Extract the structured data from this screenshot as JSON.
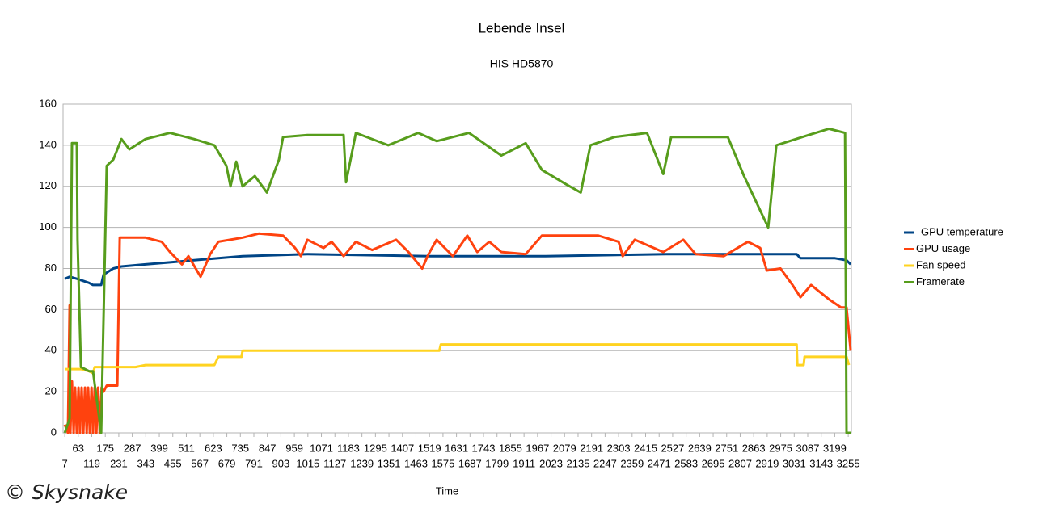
{
  "chart_data": {
    "type": "line",
    "title": "Lebende Insel",
    "subtitle": "HIS HD5870",
    "x_label": "Time",
    "watermark": "© Skysnake",
    "xlim": [
      0,
      3268
    ],
    "xticks": [
      7,
      63,
      119,
      175,
      231,
      287,
      343,
      399,
      455,
      511,
      567,
      623,
      679,
      735,
      791,
      847,
      903,
      959,
      1015,
      1071,
      1127,
      1183,
      1239,
      1295,
      1351,
      1407,
      1463,
      1519,
      1575,
      1631,
      1687,
      1743,
      1799,
      1855,
      1911,
      1967,
      2023,
      2079,
      2135,
      2191,
      2247,
      2303,
      2359,
      2415,
      2471,
      2527,
      2583,
      2639,
      2695,
      2751,
      2807,
      2863,
      2919,
      2975,
      3031,
      3087,
      3143,
      3199,
      3255
    ],
    "ylim": [
      0,
      160
    ],
    "yticks": [
      0,
      20,
      40,
      60,
      80,
      100,
      120,
      140,
      160
    ],
    "grid": true,
    "legend": "right",
    "series": [
      {
        "name": "GPU temperature",
        "color": "#004586",
        "x": [
          7,
          27,
          57,
          108,
          124,
          158,
          168,
          208,
          242,
          342,
          443,
          543,
          644,
          744,
          1013,
          1516,
          2000,
          2500,
          3041,
          3057,
          3200,
          3248,
          3265
        ],
        "values": [
          75,
          76,
          75,
          73,
          72,
          72,
          77,
          80,
          81,
          82,
          83,
          84,
          85,
          86,
          87,
          86,
          86,
          87,
          87,
          85,
          85,
          84,
          82
        ]
      },
      {
        "name": "GPU usage",
        "color": "#ff420e",
        "x": [
          7,
          20,
          27,
          30,
          37,
          44,
          50,
          57,
          64,
          70,
          77,
          84,
          91,
          98,
          104,
          111,
          118,
          124,
          131,
          138,
          145,
          152,
          160,
          168,
          181,
          225,
          235,
          242,
          342,
          409,
          443,
          493,
          520,
          570,
          610,
          644,
          744,
          811,
          912,
          962,
          986,
          1013,
          1080,
          1113,
          1163,
          1214,
          1281,
          1381,
          1432,
          1489,
          1515,
          1549,
          1616,
          1676,
          1717,
          1767,
          1817,
          1918,
          1985,
          2219,
          2303,
          2320,
          2370,
          2488,
          2571,
          2622,
          2739,
          2839,
          2890,
          2917,
          2974,
          3024,
          3057,
          3101,
          3175,
          3225,
          3248,
          3265
        ],
        "values": [
          4,
          0,
          62,
          0,
          25,
          0,
          22,
          0,
          22,
          0,
          22,
          0,
          22,
          0,
          22,
          0,
          22,
          0,
          22,
          0,
          22,
          0,
          22,
          20,
          23,
          23,
          95,
          95,
          95,
          93,
          88,
          82,
          86,
          76,
          87,
          93,
          95,
          97,
          96,
          90,
          86,
          94,
          90,
          93,
          86,
          93,
          89,
          94,
          88,
          80,
          87,
          94,
          86,
          96,
          88,
          93,
          88,
          87,
          96,
          96,
          93,
          86,
          94,
          88,
          94,
          87,
          86,
          93,
          90,
          79,
          80,
          72,
          66,
          72,
          65,
          61,
          61,
          40
        ]
      },
      {
        "name": "Fan speed",
        "color": "#ffd320",
        "x": [
          7,
          74,
          108,
          124,
          131,
          300,
          342,
          627,
          644,
          740,
          744,
          1560,
          1566,
          3041,
          3044,
          3070,
          3074,
          3248,
          3258
        ],
        "values": [
          31,
          31,
          30,
          29,
          32,
          32,
          33,
          33,
          37,
          37,
          40,
          40,
          43,
          43,
          33,
          33,
          37,
          37,
          33
        ]
      },
      {
        "name": "Framerate",
        "color": "#579d1c",
        "x": [
          7,
          27,
          37,
          57,
          60,
          74,
          108,
          124,
          158,
          181,
          208,
          242,
          275,
          342,
          443,
          543,
          627,
          677,
          694,
          718,
          744,
          795,
          845,
          895,
          912,
          1013,
          1163,
          1173,
          1214,
          1348,
          1472,
          1549,
          1683,
          1817,
          1918,
          1985,
          2085,
          2146,
          2186,
          2286,
          2421,
          2488,
          2521,
          2756,
          2823,
          2923,
          2957,
          3091,
          3175,
          3242,
          3248,
          3265
        ],
        "values": [
          0,
          7,
          141,
          141,
          94,
          32,
          30,
          30,
          0,
          130,
          133,
          143,
          138,
          143,
          146,
          143,
          140,
          130,
          120,
          132,
          120,
          125,
          117,
          133,
          144,
          145,
          145,
          122,
          146,
          140,
          146,
          142,
          146,
          135,
          141,
          128,
          121,
          117,
          140,
          144,
          146,
          126,
          144,
          144,
          125,
          100,
          140,
          145,
          148,
          146,
          0,
          0
        ]
      }
    ]
  }
}
